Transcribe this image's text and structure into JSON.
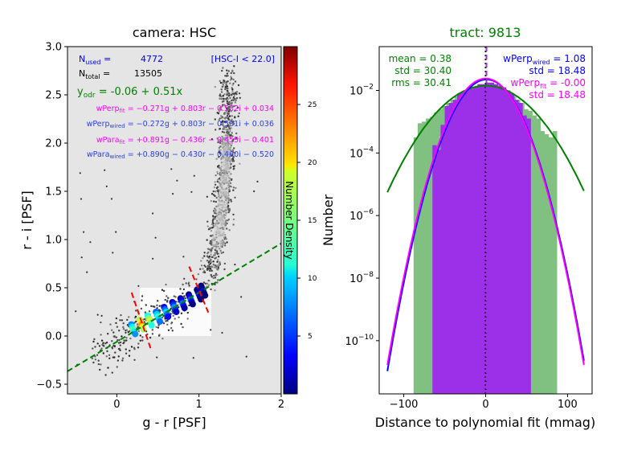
{
  "chart_data": [
    {
      "type": "scatter",
      "title": "camera: HSC",
      "xlabel": "g - r  [PSF]",
      "ylabel": "r - i  [PSF]",
      "xlim": [
        -0.6,
        2.0
      ],
      "ylim": [
        -0.6,
        3.0
      ],
      "xticks": [
        "0",
        "1",
        "2"
      ],
      "yticks": [
        "−0.5",
        "0.0",
        "0.5",
        "1.0",
        "1.5",
        "2.0",
        "2.5",
        "3.0"
      ],
      "grid": false,
      "background": "#e5e5e5",
      "colorbar": {
        "label": "Number Density",
        "ticks": [
          "5",
          "10",
          "15",
          "20",
          "25"
        ],
        "range": [
          0,
          30
        ]
      },
      "annotations": {
        "nused_label": "N",
        "nused_sub": "used",
        "nused_eq": " =",
        "nused_value": "4772",
        "ntotal_label": "N",
        "ntotal_sub": "total",
        "ntotal_eq": " =",
        "ntotal_value": "13505",
        "cut": "[HSC-I < 22.0]",
        "yodr_label": "y",
        "yodr_sub": "odr",
        "yodr_rest": " = -0.06 + 0.51x",
        "wperp_fit_name": "wPerp",
        "wperp_fit_sub": "fit",
        "wperp_fit_eq": " = −0.271g + 0.803r − 0.532i + 0.034",
        "wperp_wired_name": "wPerp",
        "wperp_wired_sub": "wired",
        "wperp_wired_eq": " = −0.272g + 0.803r − 0.531i + 0.036",
        "wpara_fit_name": "wPara",
        "wpara_fit_sub": "fit",
        "wpara_fit_eq": " = +0.891g − 0.436r − 0.455i − 0.401",
        "wpara_wired_name": "wPara",
        "wpara_wired_sub": "wired",
        "wpara_wired_eq": " = +0.890g − 0.430r − 0.460i − 0.520"
      },
      "odr_line": {
        "intercept": -0.06,
        "slope": 0.51,
        "color": "#008000"
      },
      "locus_boundary_lines": [
        {
          "from": [
            0.18,
            0.45
          ],
          "to": [
            0.42,
            -0.15
          ],
          "color": "#ff0000"
        },
        {
          "from": [
            0.88,
            0.72
          ],
          "to": [
            1.12,
            0.23
          ],
          "color": "#ff0000"
        }
      ],
      "highlight_box": {
        "x": [
          0.28,
          1.15
        ],
        "y": [
          0.0,
          0.5
        ]
      },
      "density_ridge": {
        "x": [
          0.2,
          0.3,
          0.4,
          0.5,
          0.6,
          0.7,
          0.8,
          0.9,
          1.0,
          1.05
        ],
        "y": [
          0.07,
          0.12,
          0.16,
          0.2,
          0.25,
          0.3,
          0.34,
          0.38,
          0.43,
          0.47
        ],
        "density": [
          14,
          22,
          18,
          13,
          10,
          8,
          7,
          6,
          4,
          3
        ]
      },
      "m_dwarf_locus": {
        "x": [
          1.1,
          1.15,
          1.2,
          1.25,
          1.28,
          1.3,
          1.32,
          1.33,
          1.34,
          1.35,
          1.36
        ],
        "y": [
          0.55,
          0.7,
          0.9,
          1.1,
          1.3,
          1.5,
          1.7,
          1.9,
          2.1,
          2.4,
          2.7
        ]
      }
    },
    {
      "type": "histogram",
      "title": "tract: 9813",
      "title_color": "#008000",
      "xlabel": "Distance to polynomial fit (mmag)",
      "ylabel": "Number",
      "xlim": [
        -130,
        130
      ],
      "ylim_log10": [
        -11.7,
        -0.6
      ],
      "yscale": "log",
      "xticks": [
        "−100",
        "0",
        "100"
      ],
      "yticks": [
        "10",
        "10",
        "10",
        "10",
        "10"
      ],
      "ytick_exponents": [
        "−2",
        "−4",
        "−6",
        "−8",
        "−10"
      ],
      "series": [
        {
          "name": "wired",
          "color": "#80c080",
          "bin_edges": [
            -88,
            -83,
            -78,
            -73,
            -68,
            -63,
            -58,
            -53,
            -48,
            -43,
            -38,
            -33,
            -28,
            -23,
            -18,
            -13,
            -8,
            -3,
            2,
            7,
            12,
            17,
            22,
            27,
            32,
            37,
            42,
            47,
            52,
            57,
            62,
            67,
            72,
            77,
            82,
            87
          ],
          "log10_counts": [
            -3.5,
            -3.05,
            -3.0,
            -2.9,
            -2.85,
            -2.7,
            -2.6,
            -2.5,
            -2.4,
            -2.3,
            -2.2,
            -2.1,
            -2.0,
            -1.95,
            -1.9,
            -1.85,
            -1.8,
            -1.8,
            -1.8,
            -1.85,
            -1.85,
            -1.9,
            -2.0,
            -2.1,
            -2.2,
            -2.3,
            -2.4,
            -2.6,
            -2.65,
            -2.8,
            -2.9,
            -3.3,
            -3.4,
            -3.5,
            -3.3
          ]
        },
        {
          "name": "fit",
          "color": "#9b30e8",
          "bin_edges": [
            -65,
            -60,
            -55,
            -50,
            -45,
            -40,
            -35,
            -30,
            -25,
            -20,
            -15,
            -10,
            -5,
            0,
            5,
            10,
            15,
            20,
            25,
            30,
            35,
            40,
            45,
            50,
            55
          ],
          "log10_counts": [
            -3.75,
            -3.9,
            -3.1,
            -2.5,
            -2.4,
            -2.3,
            -2.1,
            -2.05,
            -2.0,
            -1.95,
            -1.9,
            -1.8,
            -1.8,
            -1.75,
            -1.75,
            -1.8,
            -1.85,
            -1.9,
            -2.0,
            -2.1,
            -2.3,
            -2.4,
            -2.8,
            -2.9
          ]
        }
      ],
      "gaussians": [
        {
          "name": "green",
          "color": "#008000",
          "mean": 0.38,
          "std": 30.4,
          "log10_peak": -1.85
        },
        {
          "name": "blue",
          "color": "#0000ff",
          "mean": 1.08,
          "std": 18.48,
          "log10_peak": -1.65
        },
        {
          "name": "magenta",
          "color": "#ff00ff",
          "mean": 0.0,
          "std": 18.48,
          "log10_peak": -1.62
        }
      ],
      "vlines": [
        {
          "x": 0,
          "color": "#000000",
          "style": "dotted"
        },
        {
          "x": 1,
          "color": "#9b30e8",
          "style": "dashed"
        }
      ],
      "stats_left": {
        "mean": "mean =  0.38",
        "std": "std = 30.40",
        "rms": "rms = 30.41"
      },
      "stats_right": {
        "wperp_name": "wPerp",
        "wperp_sub": "wired",
        "wperp_val": " =  1.08",
        "std1": "std = 18.48",
        "wperpfit_name": "wPerp",
        "wperpfit_sub": "fit",
        "wperpfit_val": " = -0.00",
        "std2": "std = 18.48"
      }
    }
  ]
}
